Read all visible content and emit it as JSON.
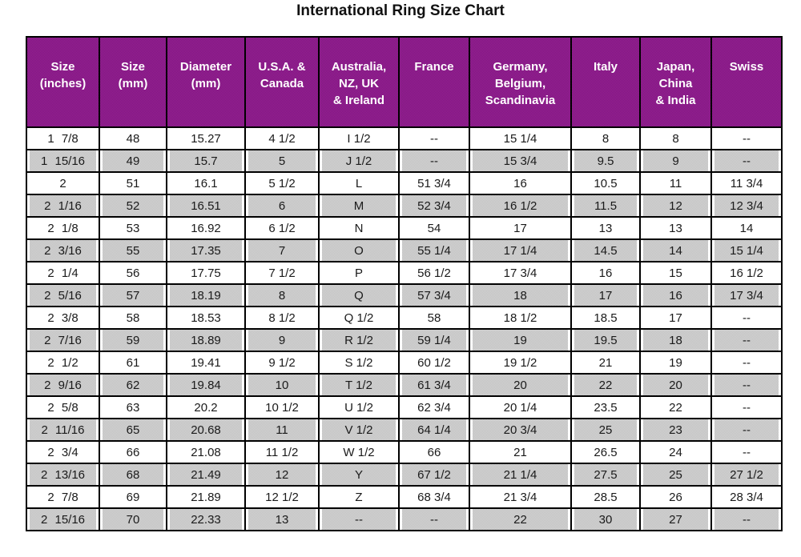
{
  "page": {
    "title": "International Ring Size Chart"
  },
  "colors": {
    "header_bg": "#8B1A8B",
    "header_text": "#FFFFFF",
    "row_bg": "#FFFFFF",
    "row_alt_bg": "#CBCBCB",
    "border": "#000000",
    "title_text": "#111111",
    "cell_text": "#1A1A1A"
  },
  "chart_data": {
    "type": "table",
    "title": "International Ring Size Chart",
    "columns": [
      "Size (inches)",
      "Size (mm)",
      "Diameter (mm)",
      "U.S.A. & Canada",
      "Australia, NZ, UK & Ireland",
      "France",
      "Germany, Belgium, Scandinavia",
      "Italy",
      "Japan, China & India",
      "Swiss"
    ],
    "header_lines": [
      [
        "Size",
        "(inches)"
      ],
      [
        "Size",
        "(mm)"
      ],
      [
        "Diameter",
        "(mm)"
      ],
      [
        "U.S.A. &",
        "Canada"
      ],
      [
        "Australia,",
        "NZ, UK",
        "& Ireland"
      ],
      [
        "France"
      ],
      [
        "Germany,",
        "Belgium,",
        "Scandinavia"
      ],
      [
        "Italy"
      ],
      [
        "Japan,",
        "China",
        "& India"
      ],
      [
        "Swiss"
      ]
    ],
    "rows": [
      [
        "1 7/8",
        "48",
        "15.27",
        "4 1/2",
        "I 1/2",
        "--",
        "15 1/4",
        "8",
        "8",
        "--"
      ],
      [
        "1 15/16",
        "49",
        "15.7",
        "5",
        "J 1/2",
        "--",
        "15 3/4",
        "9.5",
        "9",
        "--"
      ],
      [
        "2",
        "51",
        "16.1",
        "5 1/2",
        "L",
        "51 3/4",
        "16",
        "10.5",
        "11",
        "11 3/4"
      ],
      [
        "2 1/16",
        "52",
        "16.51",
        "6",
        "M",
        "52 3/4",
        "16 1/2",
        "11.5",
        "12",
        "12 3/4"
      ],
      [
        "2 1/8",
        "53",
        "16.92",
        "6 1/2",
        "N",
        "54",
        "17",
        "13",
        "13",
        "14"
      ],
      [
        "2 3/16",
        "55",
        "17.35",
        "7",
        "O",
        "55 1/4",
        "17 1/4",
        "14.5",
        "14",
        "15 1/4"
      ],
      [
        "2 1/4",
        "56",
        "17.75",
        "7 1/2",
        "P",
        "56 1/2",
        "17 3/4",
        "16",
        "15",
        "16 1/2"
      ],
      [
        "2 5/16",
        "57",
        "18.19",
        "8",
        "Q",
        "57 3/4",
        "18",
        "17",
        "16",
        "17 3/4"
      ],
      [
        "2 3/8",
        "58",
        "18.53",
        "8 1/2",
        "Q 1/2",
        "58",
        "18 1/2",
        "18.5",
        "17",
        "--"
      ],
      [
        "2 7/16",
        "59",
        "18.89",
        "9",
        "R 1/2",
        "59 1/4",
        "19",
        "19.5",
        "18",
        "--"
      ],
      [
        "2 1/2",
        "61",
        "19.41",
        "9 1/2",
        "S 1/2",
        "60 1/2",
        "19 1/2",
        "21",
        "19",
        "--"
      ],
      [
        "2 9/16",
        "62",
        "19.84",
        "10",
        "T 1/2",
        "61 3/4",
        "20",
        "22",
        "20",
        "--"
      ],
      [
        "2 5/8",
        "63",
        "20.2",
        "10 1/2",
        "U 1/2",
        "62 3/4",
        "20 1/4",
        "23.5",
        "22",
        "--"
      ],
      [
        "2 11/16",
        "65",
        "20.68",
        "11",
        "V 1/2",
        "64 1/4",
        "20 3/4",
        "25",
        "23",
        "--"
      ],
      [
        "2 3/4",
        "66",
        "21.08",
        "11 1/2",
        "W 1/2",
        "66",
        "21",
        "26.5",
        "24",
        "--"
      ],
      [
        "2 13/16",
        "68",
        "21.49",
        "12",
        "Y",
        "67 1/2",
        "21 1/4",
        "27.5",
        "25",
        "27 1/2"
      ],
      [
        "2 7/8",
        "69",
        "21.89",
        "12 1/2",
        "Z",
        "68 3/4",
        "21 3/4",
        "28.5",
        "26",
        "28 3/4"
      ],
      [
        "2 15/16",
        "70",
        "22.33",
        "13",
        "--",
        "--",
        "22",
        "30",
        "27",
        "--"
      ]
    ]
  }
}
